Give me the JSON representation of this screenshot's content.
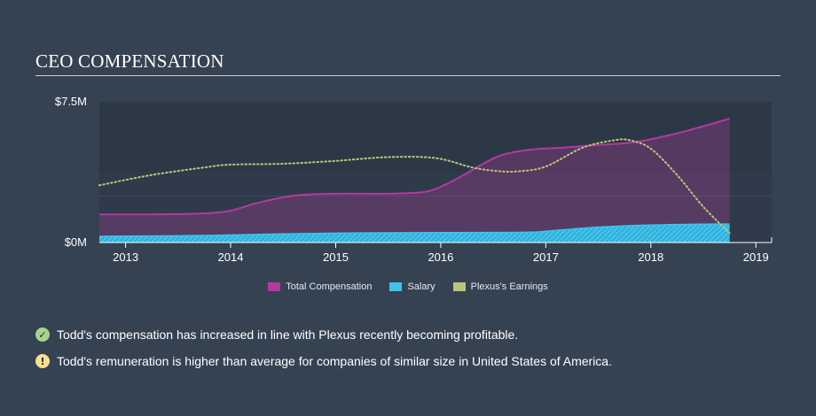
{
  "header": {
    "title": "CEO COMPENSATION"
  },
  "colors": {
    "total_compensation": "#b23a9f",
    "salary": "#3ec3ec",
    "earnings": "#b9c77a",
    "positive_icon": "#a8d58a",
    "warning_icon": "#f7e08e"
  },
  "legend": [
    {
      "label": "Total Compensation",
      "color": "#b23a9f"
    },
    {
      "label": "Salary",
      "color": "#3ec3ec"
    },
    {
      "label": "Plexus's Earnings",
      "color": "#b9c77a"
    }
  ],
  "notes": [
    {
      "icon": "check-icon",
      "text": "Todd's compensation has increased in line with Plexus recently becoming profitable."
    },
    {
      "icon": "exclamation-icon",
      "text": "Todd's remuneration is higher than average for companies of similar size in United States of America."
    }
  ],
  "chart_data": {
    "type": "area",
    "title": "CEO COMPENSATION",
    "xlabel": "",
    "ylabel": "",
    "xlim": [
      2012.75,
      2019.15
    ],
    "ylim": [
      0,
      7.5
    ],
    "y_ticks": [
      {
        "value": 0,
        "label": "$0M"
      },
      {
        "value": 7.5,
        "label": "$7.5M"
      }
    ],
    "x_ticks": [
      {
        "value": 2013,
        "label": "2013"
      },
      {
        "value": 2014,
        "label": "2014"
      },
      {
        "value": 2015,
        "label": "2015"
      },
      {
        "value": 2016,
        "label": "2016"
      },
      {
        "value": 2017,
        "label": "2017"
      },
      {
        "value": 2018,
        "label": "2018"
      },
      {
        "value": 2019,
        "label": "2019"
      }
    ],
    "grid": true,
    "legend_position": "bottom",
    "series": [
      {
        "name": "Total Compensation",
        "style": "area",
        "x": [
          2012.75,
          2013.25,
          2013.75,
          2014.0,
          2014.25,
          2014.6,
          2015.0,
          2015.5,
          2015.85,
          2016.05,
          2016.25,
          2016.55,
          2016.85,
          2017.15,
          2017.5,
          2017.85,
          2018.2,
          2018.5,
          2018.75
        ],
        "values": [
          1.5,
          1.5,
          1.55,
          1.7,
          2.1,
          2.5,
          2.6,
          2.6,
          2.7,
          3.1,
          3.7,
          4.6,
          4.95,
          5.05,
          5.2,
          5.35,
          5.75,
          6.2,
          6.6
        ]
      },
      {
        "name": "Salary",
        "style": "area",
        "x": [
          2012.75,
          2013.5,
          2014.0,
          2014.5,
          2015.0,
          2015.5,
          2016.0,
          2016.5,
          2016.85,
          2017.1,
          2017.5,
          2018.0,
          2018.5,
          2018.75
        ],
        "values": [
          0.33,
          0.36,
          0.4,
          0.46,
          0.5,
          0.52,
          0.53,
          0.54,
          0.55,
          0.65,
          0.82,
          0.93,
          0.98,
          0.98
        ]
      },
      {
        "name": "Plexus's Earnings",
        "style": "dotted-line",
        "x": [
          2012.75,
          2013.25,
          2013.75,
          2014.0,
          2014.5,
          2015.0,
          2015.5,
          2015.95,
          2016.3,
          2016.55,
          2016.75,
          2017.0,
          2017.35,
          2017.65,
          2017.8,
          2018.0,
          2018.25,
          2018.5,
          2018.75
        ],
        "values": [
          3.05,
          3.6,
          4.0,
          4.15,
          4.2,
          4.35,
          4.55,
          4.5,
          4.0,
          3.8,
          3.8,
          4.05,
          5.05,
          5.45,
          5.45,
          5.0,
          3.6,
          1.9,
          0.5
        ]
      }
    ]
  }
}
